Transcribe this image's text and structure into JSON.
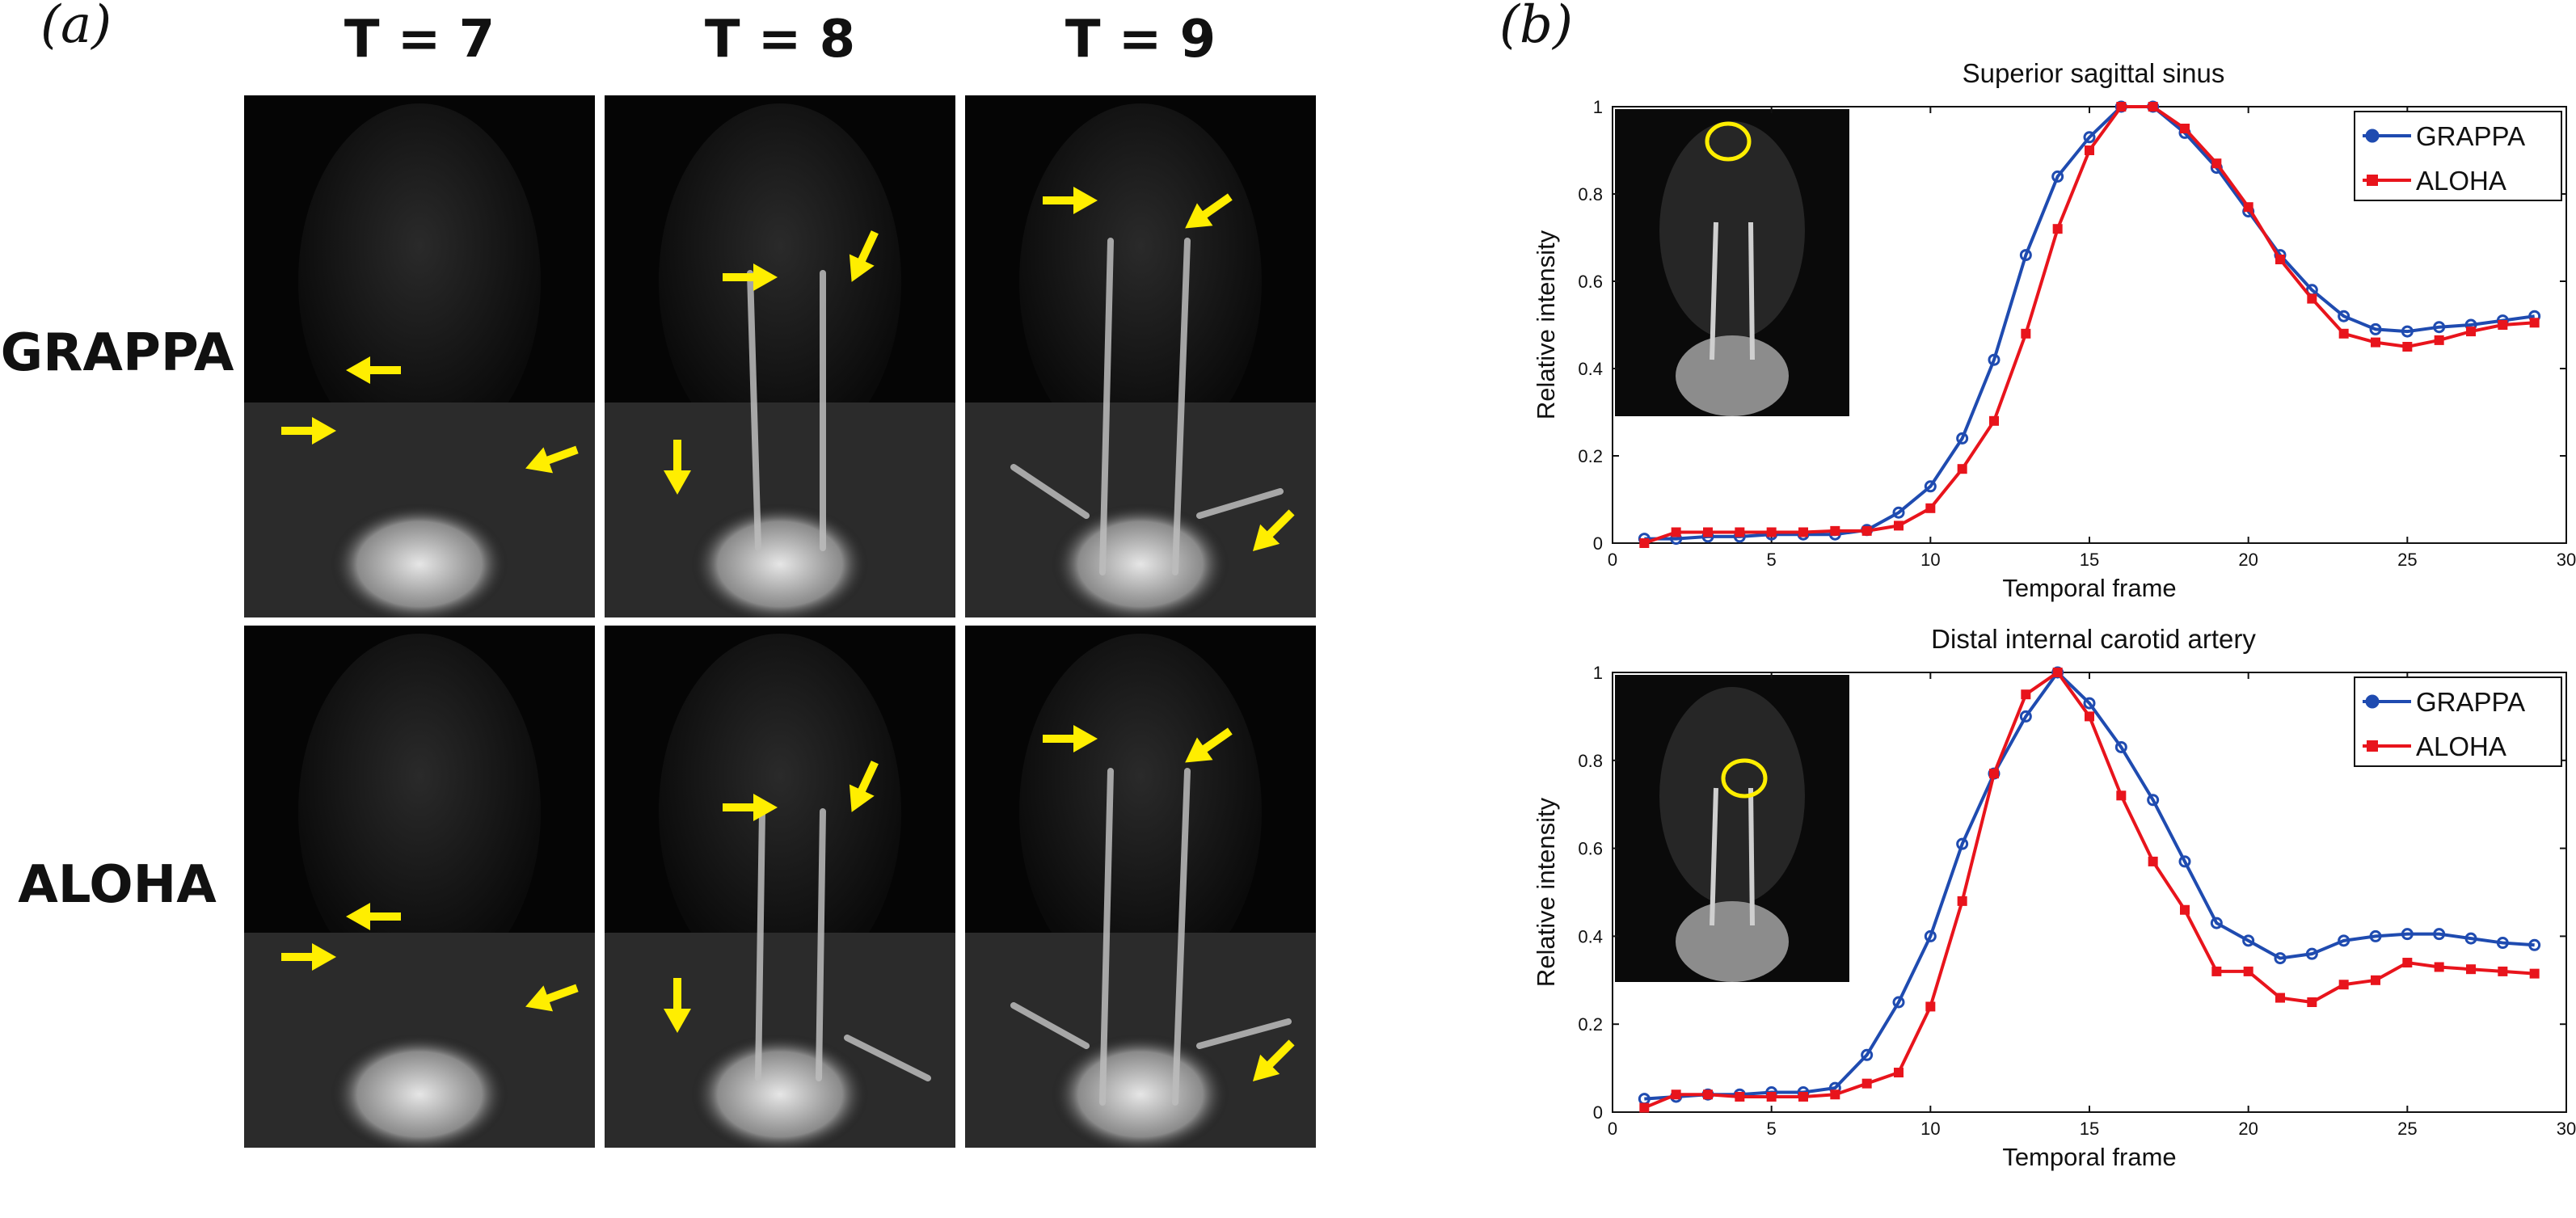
{
  "panel_a": {
    "letter": "(a)",
    "columns": [
      "T = 7",
      "T = 8",
      "T = 9"
    ],
    "rows": [
      "GRAPPA",
      "ALOHA"
    ]
  },
  "panel_b": {
    "letter": "(b)"
  },
  "colors": {
    "grappa": "#1f4bb0",
    "aloha": "#e8141c",
    "arrow": "#ffee00",
    "marker_circle": "#ffee00"
  },
  "chart_data": [
    {
      "type": "line",
      "title": "Superior sagittal sinus",
      "xlabel": "Temporal frame",
      "ylabel": "Relative intensity",
      "xlim": [
        0,
        30
      ],
      "ylim": [
        0,
        1
      ],
      "xticks": [
        "0",
        "5",
        "10",
        "15",
        "20",
        "25",
        "30"
      ],
      "yticks": [
        "0",
        "0.2",
        "0.4",
        "0.6",
        "0.8",
        "1"
      ],
      "legend": "top-right",
      "x": [
        1,
        2,
        3,
        4,
        5,
        6,
        7,
        8,
        9,
        10,
        11,
        12,
        13,
        14,
        15,
        16,
        17,
        18,
        19,
        20,
        21,
        22,
        23,
        24,
        25,
        26,
        27,
        28,
        29
      ],
      "series": [
        {
          "name": "GRAPPA",
          "marker": "circle",
          "values": [
            0.01,
            0.01,
            0.015,
            0.015,
            0.02,
            0.02,
            0.02,
            0.03,
            0.07,
            0.13,
            0.24,
            0.42,
            0.66,
            0.84,
            0.93,
            1.0,
            1.0,
            0.94,
            0.86,
            0.76,
            0.66,
            0.58,
            0.52,
            0.49,
            0.485,
            0.495,
            0.5,
            0.51,
            0.52
          ]
        },
        {
          "name": "ALOHA",
          "marker": "square",
          "values": [
            0.0,
            0.025,
            0.025,
            0.025,
            0.025,
            0.025,
            0.028,
            0.028,
            0.04,
            0.08,
            0.17,
            0.28,
            0.48,
            0.72,
            0.9,
            1.0,
            1.0,
            0.95,
            0.87,
            0.77,
            0.65,
            0.56,
            0.48,
            0.46,
            0.45,
            0.465,
            0.485,
            0.5,
            0.505
          ]
        }
      ]
    },
    {
      "type": "line",
      "title": "Distal internal carotid artery",
      "xlabel": "Temporal frame",
      "ylabel": "Relative intensity",
      "xlim": [
        0,
        30
      ],
      "ylim": [
        0,
        1
      ],
      "xticks": [
        "0",
        "5",
        "10",
        "15",
        "20",
        "25",
        "30"
      ],
      "yticks": [
        "0",
        "0.2",
        "0.4",
        "0.6",
        "0.8",
        "1"
      ],
      "legend": "top-right",
      "x": [
        1,
        2,
        3,
        4,
        5,
        6,
        7,
        8,
        9,
        10,
        11,
        12,
        13,
        14,
        15,
        16,
        17,
        18,
        19,
        20,
        21,
        22,
        23,
        24,
        25,
        26,
        27,
        28,
        29
      ],
      "series": [
        {
          "name": "GRAPPA",
          "marker": "circle",
          "values": [
            0.03,
            0.035,
            0.04,
            0.04,
            0.045,
            0.045,
            0.055,
            0.13,
            0.25,
            0.4,
            0.61,
            0.77,
            0.9,
            1.0,
            0.93,
            0.83,
            0.71,
            0.57,
            0.43,
            0.39,
            0.35,
            0.36,
            0.39,
            0.4,
            0.405,
            0.405,
            0.395,
            0.385,
            0.38
          ]
        },
        {
          "name": "ALOHA",
          "marker": "square",
          "values": [
            0.01,
            0.04,
            0.04,
            0.035,
            0.035,
            0.035,
            0.04,
            0.065,
            0.09,
            0.24,
            0.48,
            0.77,
            0.95,
            1.0,
            0.9,
            0.72,
            0.57,
            0.46,
            0.32,
            0.32,
            0.26,
            0.25,
            0.29,
            0.3,
            0.34,
            0.33,
            0.325,
            0.32,
            0.315
          ]
        }
      ]
    }
  ]
}
